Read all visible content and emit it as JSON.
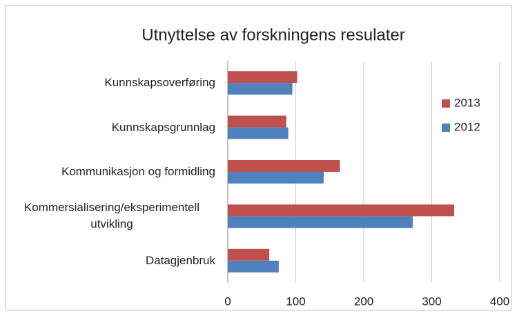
{
  "chart_data": {
    "type": "barh",
    "title": "Utnyttelse av forskningens resulater",
    "categories": [
      "Kunnskapsoverføring",
      "Kunnskapsgrunnlag",
      "Kommunikasjon og formidling",
      "Kommersialisering/eksperimentell utvikling",
      "Datagjenbruk"
    ],
    "series": [
      {
        "name": "2013",
        "color": "#c0504d",
        "values": [
          102,
          86,
          165,
          333,
          61
        ]
      },
      {
        "name": "2012",
        "color": "#4f81bd",
        "values": [
          95,
          89,
          141,
          272,
          75
        ]
      }
    ],
    "xlim": [
      0,
      400
    ],
    "xticks": [
      0,
      100,
      200,
      300,
      400
    ],
    "grid": true,
    "legend": "right"
  }
}
